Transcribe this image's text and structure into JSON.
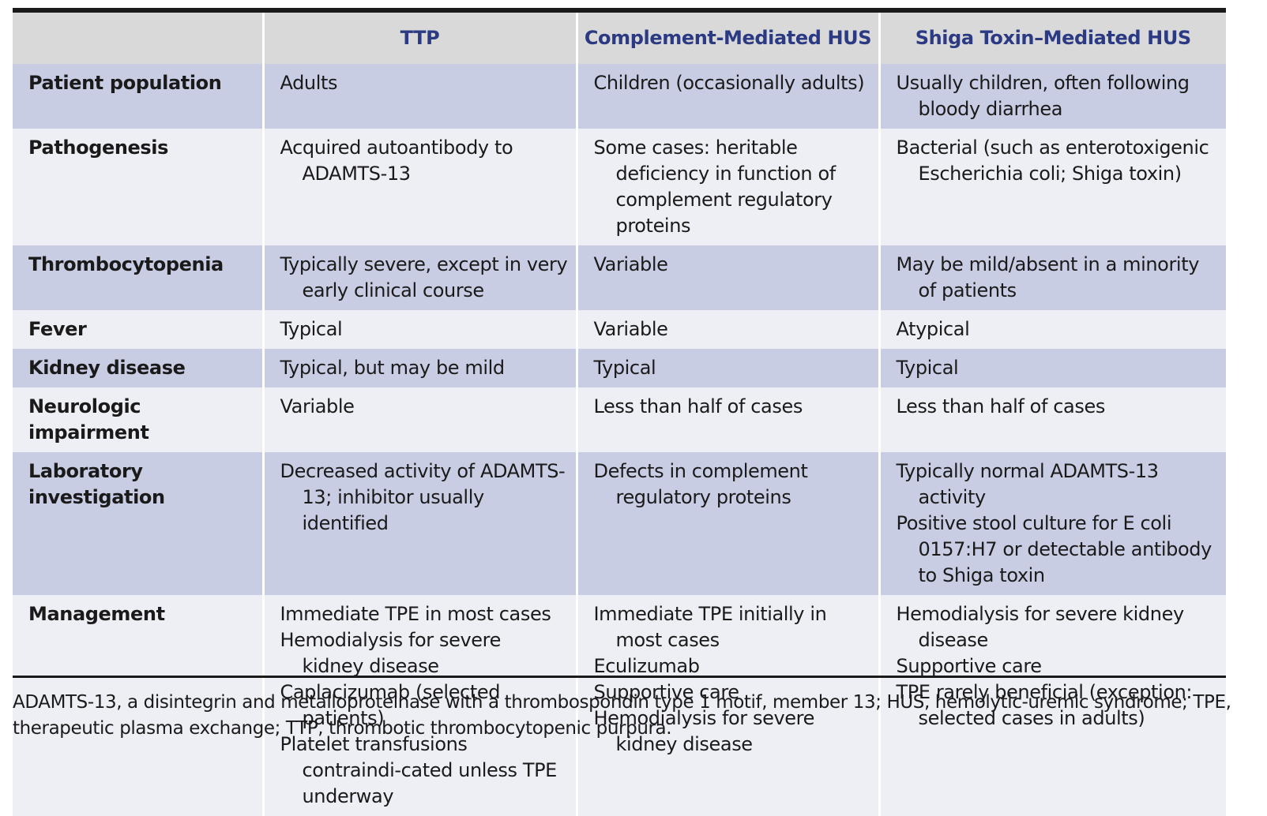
{
  "header": {
    "col0": "",
    "col1": "TTP",
    "col2": "Complement-Mediated HUS",
    "col3": "Shiga Toxin–Mediated HUS"
  },
  "rows": [
    {
      "label": "Patient population",
      "ttp": [
        "Adults"
      ],
      "cm_hus": [
        "Children (occasionally adults)"
      ],
      "st_hus": [
        "Usually children, often following bloody diarrhea"
      ]
    },
    {
      "label": "Pathogenesis",
      "ttp": [
        "Acquired autoantibody to ADAMTS-13"
      ],
      "cm_hus": [
        "Some cases: heritable deficiency in function of complement regulatory proteins"
      ],
      "st_hus": [
        "Bacterial (such as enterotoxigenic Escherichia coli; Shiga toxin)"
      ]
    },
    {
      "label": "Thrombocytopenia",
      "ttp": [
        "Typically severe, except in very early clinical course"
      ],
      "cm_hus": [
        "Variable"
      ],
      "st_hus": [
        "May be mild/absent in a minority of patients"
      ]
    },
    {
      "label": "Fever",
      "ttp": [
        "Typical"
      ],
      "cm_hus": [
        "Variable"
      ],
      "st_hus": [
        "Atypical"
      ]
    },
    {
      "label": "Kidney disease",
      "ttp": [
        "Typical, but may be mild"
      ],
      "cm_hus": [
        "Typical"
      ],
      "st_hus": [
        "Typical"
      ]
    },
    {
      "label": "Neurologic impairment",
      "ttp": [
        "Variable"
      ],
      "cm_hus": [
        "Less than half of cases"
      ],
      "st_hus": [
        "Less than half of cases"
      ]
    },
    {
      "label": "Laboratory investigation",
      "ttp": [
        "Decreased activity of ADAMTS-13; inhibitor usually identified"
      ],
      "cm_hus": [
        "Defects in complement regulatory proteins"
      ],
      "st_hus": [
        "Typically normal ADAMTS-13 activity",
        "Positive stool culture for E coli 0157:H7 or detectable antibody to Shiga toxin"
      ]
    },
    {
      "label": "Management",
      "ttp": [
        "Immediate TPE in most cases",
        "Hemodialysis for severe kidney disease",
        "Caplacizumab (selected patients)",
        "Platelet transfusions contraindi-cated unless TPE underway"
      ],
      "cm_hus": [
        "Immediate TPE initially in most cases",
        "Eculizumab",
        "Supportive care",
        "Hemodialysis for severe kidney disease"
      ],
      "st_hus": [
        "Hemodialysis for severe kidney disease",
        "Supportive care",
        "TPE rarely beneficial (exception: selected cases in adults)"
      ]
    }
  ],
  "footnote": "ADAMTS-13, a disintegrin and metalloproteinase with a thrombospondin type 1 motif, member 13; HUS, hemolytic-uremic syndrome; TPE, therapeutic plasma exchange; TTP, thrombotic thrombocytopenic purpura."
}
